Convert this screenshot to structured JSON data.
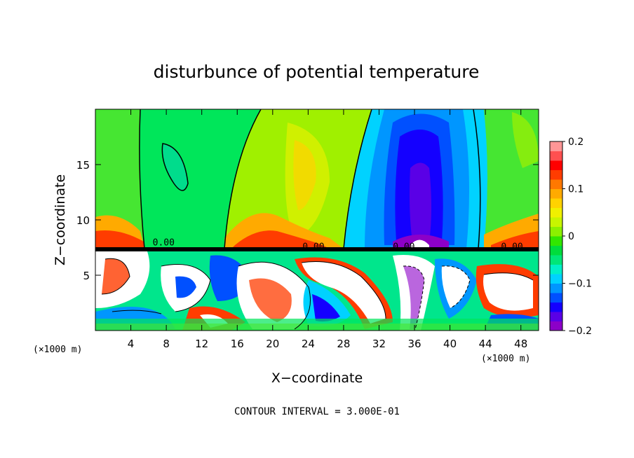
{
  "chart_data": {
    "type": "heatmap",
    "title": "disturbunce of potential temperature",
    "xlabel": "X−coordinate",
    "ylabel": "Z−coordinate",
    "x_unit_left": "(×1000 m)",
    "x_unit_right": "(×1000 m)",
    "xlim": [
      0,
      50
    ],
    "ylim": [
      0,
      20
    ],
    "x_ticks": [
      4,
      8,
      12,
      16,
      20,
      24,
      28,
      32,
      36,
      40,
      44,
      48
    ],
    "x_tick_labels": [
      "4",
      "8",
      "12",
      "16",
      "20",
      "24",
      "28",
      "32",
      "36",
      "40",
      "44",
      "48"
    ],
    "y_ticks": [
      5,
      10,
      15
    ],
    "y_tick_labels": [
      "5",
      "10",
      "15"
    ],
    "colorbar": {
      "range": [
        -0.2,
        0.2
      ],
      "ticks": [
        0.2,
        0.1,
        0,
        -0.1,
        -0.2
      ],
      "tick_labels": [
        "0.2",
        "0.1",
        "0",
        "−0.1",
        "−0.2"
      ],
      "colors": [
        "#8c00c8",
        "#5a00e6",
        "#1400ff",
        "#0050ff",
        "#0096ff",
        "#00d2ff",
        "#00f0c8",
        "#00e678",
        "#00dc3c",
        "#32e600",
        "#8cf000",
        "#c8f500",
        "#f0f000",
        "#ffd200",
        "#ffaa00",
        "#ff7800",
        "#ff3c00",
        "#ff0000",
        "#ff5050",
        "#ff9696"
      ]
    },
    "contour_labels": [
      {
        "text": "0.00",
        "x": 7.7,
        "z": 7.7
      },
      {
        "text": "0.00",
        "x": 24.6,
        "z": 7.3
      },
      {
        "text": "0.00",
        "x": 34.8,
        "z": 7.3
      },
      {
        "text": "0.00",
        "x": 47.0,
        "z": 7.3
      }
    ],
    "annotation": "CONTOUR INTERVAL = 3.000E-01"
  }
}
